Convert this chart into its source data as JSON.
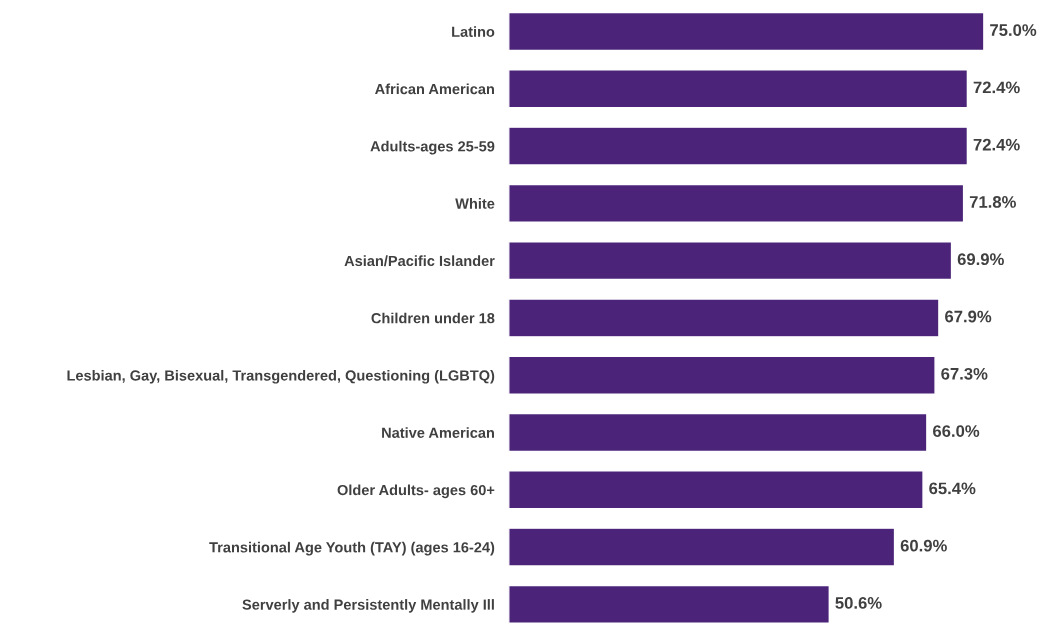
{
  "chart_data": {
    "type": "bar",
    "orientation": "horizontal",
    "categories": [
      "Latino",
      "African American",
      "Adults-ages 25-59",
      "White",
      "Asian/Pacific Islander",
      "Children under 18",
      "Lesbian, Gay, Bisexual, Transgendered, Questioning (LGBTQ)",
      "Native American",
      "Older Adults- ages 60+",
      "Transitional Age Youth (TAY) (ages 16-24)",
      "Serverly and Persistently Mentally Ill"
    ],
    "values": [
      75.0,
      72.4,
      72.4,
      71.8,
      69.9,
      67.9,
      67.3,
      66.0,
      65.4,
      60.9,
      50.6
    ],
    "value_labels": [
      "75.0%",
      "72.4%",
      "72.4%",
      "71.8%",
      "69.9%",
      "67.9%",
      "67.3%",
      "66.0%",
      "65.4%",
      "60.9%",
      "50.6%"
    ],
    "color": "#4b2479",
    "grid": false,
    "legend": false
  }
}
